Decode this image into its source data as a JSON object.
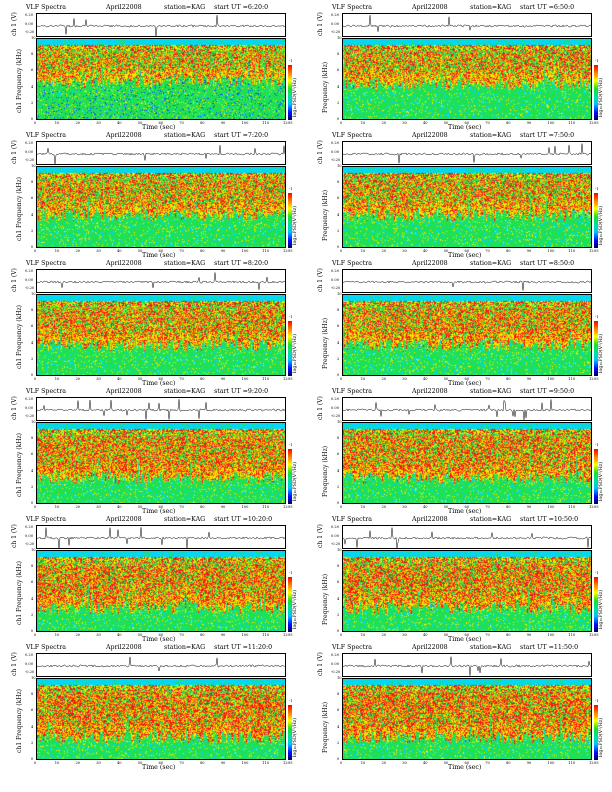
{
  "chart_data": {
    "type": "heatmap",
    "header": {
      "left": "VLF Spectra",
      "date": "April22008",
      "station": "station=KAG",
      "start_prefix": "start  UT ="
    },
    "colors": {
      "deep": "#0000a0",
      "blue": "#0050ff",
      "cyan": "#00d8ff",
      "green": "#20e050",
      "yellow": "#f0f000",
      "orange": "#ff9000",
      "red": "#ff1010"
    },
    "panels": [
      {
        "start_ut": "6:20:0",
        "ch_label": "ch 1 (V)",
        "ylabel": "ch1\nFrequency (kHz)",
        "intensity": 0.55
      },
      {
        "start_ut": "6:50:0",
        "ch_label": "ch 1 (V)",
        "ylabel": "Frequency (kHz)",
        "intensity": 0.6
      },
      {
        "start_ut": "7:20:0",
        "ch_label": "ch 1 (V)",
        "ylabel": "ch1\nFrequency (kHz)",
        "intensity": 0.65
      },
      {
        "start_ut": "7:50:0",
        "ch_label": "ch 1 (V)",
        "ylabel": "Frequency (kHz)",
        "intensity": 0.65
      },
      {
        "start_ut": "8:20:0",
        "ch_label": "ch 1 (V)",
        "ylabel": "ch1\nFrequency (kHz)",
        "intensity": 0.7
      },
      {
        "start_ut": "8:50:0",
        "ch_label": "ch 1 (V)",
        "ylabel": "Frequency (kHz)",
        "intensity": 0.7
      },
      {
        "start_ut": "9:20:0",
        "ch_label": "ch 1 (V)",
        "ylabel": "ch1\nFrequency (kHz)",
        "intensity": 0.78
      },
      {
        "start_ut": "9:50:0",
        "ch_label": "ch 1 (V)",
        "ylabel": "Frequency (kHz)",
        "intensity": 0.78
      },
      {
        "start_ut": "10:20:0",
        "ch_label": "ch 1 (V)",
        "ylabel": "ch1\nFrequency (kHz)",
        "intensity": 0.82
      },
      {
        "start_ut": "10:50:0",
        "ch_label": "ch 1 (V)",
        "ylabel": "Frequency (kHz)",
        "intensity": 0.82
      },
      {
        "start_ut": "11:20:0",
        "ch_label": "ch 1 (V)",
        "ylabel": "ch1\nFrequency (kHz)",
        "intensity": 0.85
      },
      {
        "start_ut": "11:50:0",
        "ch_label": "ch 1 (V)",
        "ylabel": "Frequency (kHz)",
        "intensity": 0.85
      }
    ],
    "xlabel": "Time  (sec)",
    "x_ticks": [
      0,
      10,
      20,
      30,
      40,
      50,
      60,
      70,
      80,
      90,
      100,
      110,
      120
    ],
    "xlim": [
      0,
      120
    ],
    "y_ticks": [
      0,
      2,
      4,
      6,
      8,
      10
    ],
    "ylim": [
      0,
      10
    ],
    "ts_ticks": [
      "0.20",
      "0.00",
      "-0.20"
    ],
    "colorbar_label": "log₁₀PSD(V²/Hz)",
    "colorbar_ticks": [
      "-1",
      "-5"
    ]
  }
}
